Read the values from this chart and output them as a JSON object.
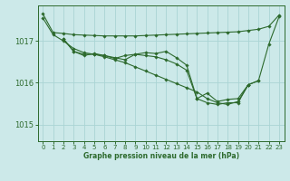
{
  "title": "Graphe pression niveau de la mer (hPa)",
  "bg_color": "#cce9e9",
  "grid_color": "#aad4d4",
  "line_color": "#2d6a2d",
  "marker_color": "#2d6a2d",
  "ylim": [
    1014.6,
    1017.85
  ],
  "xlim": [
    -0.5,
    23.5
  ],
  "yticks": [
    1015,
    1016,
    1017
  ],
  "xticks": [
    0,
    1,
    2,
    3,
    4,
    5,
    6,
    7,
    8,
    9,
    10,
    11,
    12,
    13,
    14,
    15,
    16,
    17,
    18,
    19,
    20,
    21,
    22,
    23
  ],
  "series": [
    {
      "x": [
        0,
        1,
        2,
        3,
        4,
        5,
        6,
        7,
        8,
        9,
        10,
        11,
        12,
        13,
        14,
        15,
        16,
        17,
        18,
        19,
        20,
        21,
        22,
        23
      ],
      "y": [
        1017.65,
        1017.2,
        1017.18,
        1017.15,
        1017.14,
        1017.13,
        1017.12,
        1017.12,
        1017.12,
        1017.12,
        1017.13,
        1017.14,
        1017.15,
        1017.16,
        1017.17,
        1017.18,
        1017.19,
        1017.2,
        1017.21,
        1017.22,
        1017.25,
        1017.28,
        1017.35,
        1017.62
      ]
    },
    {
      "x": [
        0,
        1,
        2,
        3,
        4,
        5,
        6,
        7,
        8,
        9,
        10,
        11,
        12,
        13,
        14,
        15,
        16,
        17,
        18,
        19,
        20,
        21
      ],
      "y": [
        1017.55,
        1017.15,
        1017.0,
        1016.82,
        1016.72,
        1016.68,
        1016.62,
        1016.55,
        1016.48,
        1016.38,
        1016.28,
        1016.18,
        1016.08,
        1015.98,
        1015.88,
        1015.78,
        1015.62,
        1015.52,
        1015.48,
        1015.55,
        1015.95,
        1016.05
      ]
    },
    {
      "x": [
        2,
        3,
        4,
        5,
        6,
        7,
        8,
        9,
        10,
        11,
        12,
        13,
        14,
        15,
        16,
        17,
        18,
        19,
        20,
        21,
        22,
        23
      ],
      "y": [
        1017.05,
        1016.75,
        1016.68,
        1016.68,
        1016.65,
        1016.58,
        1016.65,
        1016.68,
        1016.65,
        1016.62,
        1016.55,
        1016.45,
        1016.3,
        1015.62,
        1015.52,
        1015.48,
        1015.52,
        1015.52,
        1015.95,
        1016.05,
        1016.92,
        1017.58
      ]
    },
    {
      "x": [
        2,
        3,
        4,
        5,
        6,
        7,
        8,
        9,
        10,
        11,
        12,
        13,
        14,
        15,
        16,
        17,
        18,
        19,
        20
      ],
      "y": [
        1017.05,
        1016.75,
        1016.65,
        1016.7,
        1016.65,
        1016.6,
        1016.55,
        1016.68,
        1016.72,
        1016.7,
        1016.75,
        1016.6,
        1016.42,
        1015.62,
        1015.75,
        1015.55,
        1015.6,
        1015.62,
        1015.95
      ]
    }
  ]
}
